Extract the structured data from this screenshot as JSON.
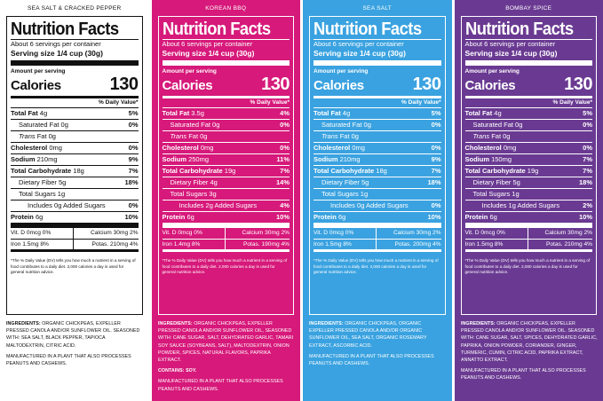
{
  "panels": [
    {
      "flavor": "SEA SALT & CRACKED PEPPER",
      "title": "Nutrition Facts",
      "servings": "About 6 servings per container",
      "serving_size": "Serving size 1/4 cup (30g)",
      "amount_per_serving": "Amount per serving",
      "calories_label": "Calories",
      "calories_value": "130",
      "dv_header": "% Daily Value*",
      "total_fat": {
        "label": "Total Fat",
        "amount": "4g",
        "dv": "5%"
      },
      "saturated_fat": {
        "label": "Saturated Fat 0g",
        "dv": "0%"
      },
      "trans_fat": {
        "label_italic": "Trans",
        "label_rest": " Fat 0g"
      },
      "cholesterol": {
        "label": "Cholesterol",
        "amount": "0mg",
        "dv": "0%"
      },
      "sodium": {
        "label": "Sodium",
        "amount": "210mg",
        "dv": "9%"
      },
      "carbohydrate": {
        "label": "Total Carbohydrate",
        "amount": "18g",
        "dv": "7%"
      },
      "fiber": {
        "label": "Dietary Fiber 5g",
        "dv": "18%"
      },
      "sugars": {
        "label": "Total Sugars 1g"
      },
      "added_sugars": {
        "label": "Includes 0g Added Sugars",
        "dv": "0%"
      },
      "protein": {
        "label": "Protein",
        "amount": "6g",
        "dv": "10%"
      },
      "vit_d": "Vit. D 0mcg 0%",
      "calcium": "Calcium 30mg 2%",
      "iron": "Iron 1.5mg 8%",
      "potassium": "Potas. 210mg 4%",
      "footnote": "*The % Daily Value (DV) tells you how much a nutrient in a serving of food contributes to a daily diet. 2,000 calories a day is used for general nutrition advice.",
      "ingredients_label": "INGREDIENTS:",
      "ingredients": "ORGANIC CHICKPEAS, EXPELLER PRESSED CANOLA AND/OR SUNFLOWER OIL. SEASONED WITH: SEA SALT, BLACK PEPPER, TAPIOCA MALTODEXTRIN, CITRIC ACID.",
      "contains": "",
      "facility": "MANUFACTURED IN A PLANT THAT ALSO PROCESSES PEANUTS AND CASHEWS."
    },
    {
      "flavor": "KOREAN BBQ",
      "title": "Nutrition Facts",
      "servings": "About 6 servings per container",
      "serving_size": "Serving size 1/4 cup (30g)",
      "amount_per_serving": "Amount per serving",
      "calories_label": "Calories",
      "calories_value": "130",
      "dv_header": "% Daily Value*",
      "total_fat": {
        "label": "Total Fat",
        "amount": "3.5g",
        "dv": "4%"
      },
      "saturated_fat": {
        "label": "Saturated Fat 0g",
        "dv": "0%"
      },
      "trans_fat": {
        "label_italic": "Trans",
        "label_rest": " Fat 0g"
      },
      "cholesterol": {
        "label": "Cholesterol",
        "amount": "0mg",
        "dv": "0%"
      },
      "sodium": {
        "label": "Sodium",
        "amount": "250mg",
        "dv": "11%"
      },
      "carbohydrate": {
        "label": "Total Carbohydrate",
        "amount": "19g",
        "dv": "7%"
      },
      "fiber": {
        "label": "Dietary Fiber 4g",
        "dv": "14%"
      },
      "sugars": {
        "label": "Total Sugars 3g"
      },
      "added_sugars": {
        "label": "Includes 2g Added Sugars",
        "dv": "4%"
      },
      "protein": {
        "label": "Protein",
        "amount": "6g",
        "dv": "10%"
      },
      "vit_d": "Vit. D 0mcg 0%",
      "calcium": "Calcium 30mg 2%",
      "iron": "Iron 1.4mg 8%",
      "potassium": "Potas. 190mg 4%",
      "footnote": "*The % Daily Value (DV) tells you how much a nutrient in a serving of food contributes to a daily diet. 2,000 calories a day is used for general nutrition advice.",
      "ingredients_label": "INGREDIENTS:",
      "ingredients": "ORGANIC CHICKPEAS, EXPELLER PRESSED CANOLA AND/OR SUNFLOWER OIL, SEASONED WITH: CANE SUGAR, SALT, DEHYDRATED GARLIC, TAMARI SOY SAUCE (SOYBEANS, SALT), MALTODEXTRIN, ONION POWDER, SPICES, NATURAL FLAVORS, PAPRIKA EXTRACT.",
      "contains": "CONTAINS: SOY.",
      "facility": "MANUFACTURED IN A PLANT THAT ALSO PROCESSES PEANUTS AND CASHEWS."
    },
    {
      "flavor": "SEA SALT",
      "title": "Nutrition Facts",
      "servings": "About 6 servings per container",
      "serving_size": "Serving size 1/4 cup (30g)",
      "amount_per_serving": "Amount per serving",
      "calories_label": "Calories",
      "calories_value": "130",
      "dv_header": "% Daily Value*",
      "total_fat": {
        "label": "Total Fat",
        "amount": "4g",
        "dv": "5%"
      },
      "saturated_fat": {
        "label": "Saturated Fat 0g",
        "dv": "0%"
      },
      "trans_fat": {
        "label_italic": "Trans",
        "label_rest": " Fat 0g"
      },
      "cholesterol": {
        "label": "Cholesterol",
        "amount": "0mg",
        "dv": "0%"
      },
      "sodium": {
        "label": "Sodium",
        "amount": "210mg",
        "dv": "9%"
      },
      "carbohydrate": {
        "label": "Total Carbohydrate",
        "amount": "18g",
        "dv": "7%"
      },
      "fiber": {
        "label": "Dietary Fiber 5g",
        "dv": "18%"
      },
      "sugars": {
        "label": "Total Sugars 1g"
      },
      "added_sugars": {
        "label": "Includes 0g Added Sugars",
        "dv": "0%"
      },
      "protein": {
        "label": "Protein",
        "amount": "6g",
        "dv": "10%"
      },
      "vit_d": "Vit. D 0mcg 0%",
      "calcium": "Calcium 30mg 2%",
      "iron": "Iron 1.5mg 8%",
      "potassium": "Potas. 200mg 4%",
      "footnote": "*The % Daily Value (DV) tells you how much a nutrient in a serving of food contributes to a daily diet. 2,000 calories a day is used for general nutrition advice.",
      "ingredients_label": "INGREDIENTS:",
      "ingredients": "ORGANIC CHICKPEAS, ORGANIC EXPELLER PRESSED CANOLA AND/OR ORGANIC SUNFLOWER OIL, SEA SALT, ORGANIC ROSEMARY EXTRACT, ASCORBIC ACID.",
      "contains": "",
      "facility": "MANUFACTURED IN A PLANT THAT ALSO PROCESSES PEANUTS AND CASHEWS."
    },
    {
      "flavor": "BOMBAY SPICE",
      "title": "Nutrition Facts",
      "servings": "About 6 servings per container",
      "serving_size": "Serving size 1/4 cup (30g)",
      "amount_per_serving": "Amount per serving",
      "calories_label": "Calories",
      "calories_value": "130",
      "dv_header": "% Daily Value*",
      "total_fat": {
        "label": "Total Fat",
        "amount": "4g",
        "dv": "5%"
      },
      "saturated_fat": {
        "label": "Saturated Fat 0g",
        "dv": "0%"
      },
      "trans_fat": {
        "label_italic": "Trans",
        "label_rest": " Fat 0g"
      },
      "cholesterol": {
        "label": "Cholesterol",
        "amount": "0mg",
        "dv": "0%"
      },
      "sodium": {
        "label": "Sodium",
        "amount": "150mg",
        "dv": "7%"
      },
      "carbohydrate": {
        "label": "Total Carbohydrate",
        "amount": "19g",
        "dv": "7%"
      },
      "fiber": {
        "label": "Dietary Fiber 5g",
        "dv": "18%"
      },
      "sugars": {
        "label": "Total Sugars 1g"
      },
      "added_sugars": {
        "label": "Includes 1g Added Sugars",
        "dv": "2%"
      },
      "protein": {
        "label": "Protein",
        "amount": "6g",
        "dv": "10%"
      },
      "vit_d": "Vit. D 0mcg 0%",
      "calcium": "Calcium 30mg 2%",
      "iron": "Iron 1.5mg 8%",
      "potassium": "Potas. 210mg 4%",
      "footnote": "*The % Daily Value (DV) tells you how much a nutrient in a serving of food contributes to a daily diet. 2,000 calories a day is used for general nutrition advice.",
      "ingredients_label": "INGREDIENTS:",
      "ingredients": "ORGANIC CHICKPEAS, EXPELLER PRESSED CANOLA AND/OR SUNFLOWER OIL. SEASONED WITH: CANE SUGAR, SALT, SPICES, DEHYDRATED GARLIC, PAPRIKA, ONION POWDER, CORIANDER, GINGER, TURMERIC, CUMIN, CITRIC ACID, PAPRIKA EXTRACT, ANNATTO EXTRACT.",
      "contains": "",
      "facility": "MANUFACTURED IN A PLANT THAT ALSO PROCESSES PEANUTS AND CASHEWS."
    }
  ],
  "theme_colors": {
    "sea_salt_cracked_pepper": "#ffffff",
    "korean_bbq": "#d6197a",
    "sea_salt": "#3aa2e0",
    "bombay_spice": "#6a3a92"
  }
}
